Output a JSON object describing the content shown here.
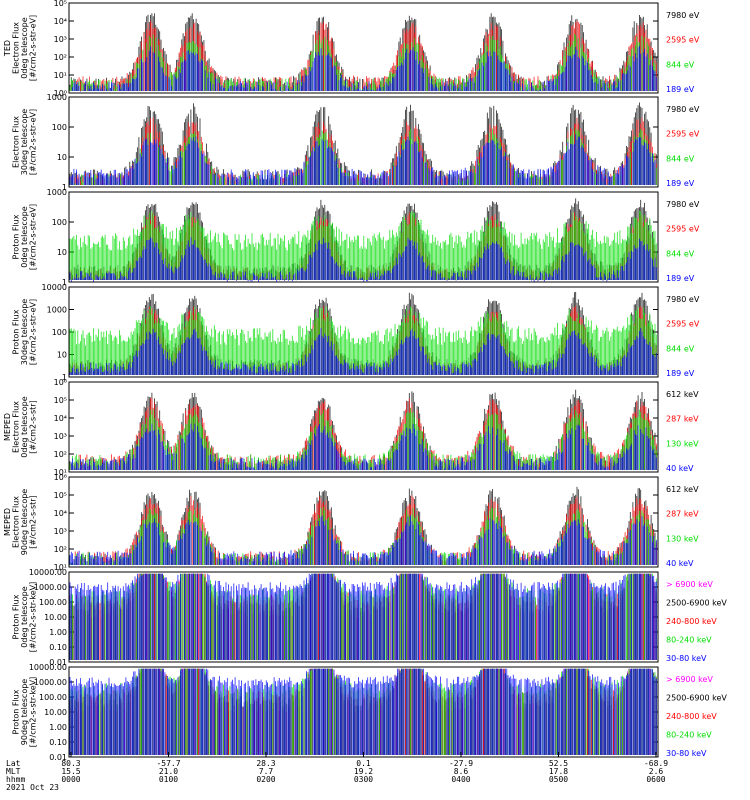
{
  "colors": {
    "blue": "#0000ff",
    "red": "#ff0000",
    "green": "#00dd00",
    "black": "#000000",
    "magenta": "#ff00ff"
  },
  "chart_data": [
    {
      "type": "line",
      "ylabel_lines": [
        "TED",
        "Electron Flux",
        "0deg telescope",
        "[#/cm2-s-str-eV]"
      ],
      "yscale": "log",
      "yticks": [
        "10⁰",
        "10¹",
        "10²",
        "10³",
        "10⁴",
        "10⁵"
      ],
      "ylim": [
        1,
        100000
      ],
      "series": [
        {
          "name": "7980 eV",
          "color": "#000000"
        },
        {
          "name": "2595 eV",
          "color": "#ff0000"
        },
        {
          "name": "844 eV",
          "color": "#00dd00"
        },
        {
          "name": "189 eV",
          "color": "#0000ff"
        }
      ]
    },
    {
      "type": "line",
      "ylabel_lines": [
        "Electron Flux",
        "30deg telescope",
        "[#/cm2-s-str-eV]"
      ],
      "yscale": "log",
      "yticks": [
        "1",
        "10",
        "100",
        "1000"
      ],
      "ylim": [
        1,
        3000
      ],
      "series": [
        {
          "name": "7980 eV",
          "color": "#000000"
        },
        {
          "name": "2595 eV",
          "color": "#ff0000"
        },
        {
          "name": "844 eV",
          "color": "#00dd00"
        },
        {
          "name": "189 eV",
          "color": "#0000ff"
        }
      ]
    },
    {
      "type": "line",
      "ylabel_lines": [
        "Proton Flux",
        "0deg telescope",
        "[#/cm2-s-str-eV]"
      ],
      "yscale": "log",
      "yticks": [
        "1",
        "10",
        "100",
        "1000"
      ],
      "ylim": [
        1,
        3000
      ],
      "series": [
        {
          "name": "7980 eV",
          "color": "#000000"
        },
        {
          "name": "2595 eV",
          "color": "#ff0000"
        },
        {
          "name": "844 eV",
          "color": "#00dd00"
        },
        {
          "name": "189 eV",
          "color": "#0000ff"
        }
      ]
    },
    {
      "type": "line",
      "ylabel_lines": [
        "Proton Flux",
        "30deg telescope",
        "[#/cm2-s-str-eV]"
      ],
      "yscale": "log",
      "yticks": [
        "1",
        "10",
        "100",
        "1000",
        "10000"
      ],
      "ylim": [
        1,
        10000
      ],
      "series": [
        {
          "name": "7980 eV",
          "color": "#000000"
        },
        {
          "name": "2595 eV",
          "color": "#ff0000"
        },
        {
          "name": "844 eV",
          "color": "#00dd00"
        },
        {
          "name": "189 eV",
          "color": "#0000ff"
        }
      ]
    },
    {
      "type": "line",
      "ylabel_lines": [
        "MEPED",
        "Electron Flux",
        "0deg telescope",
        "[#/cm2-s-str]"
      ],
      "yscale": "log",
      "yticks": [
        "10¹",
        "10²",
        "10³",
        "10⁴",
        "10⁵",
        "10⁶"
      ],
      "ylim": [
        10,
        1000000
      ],
      "series": [
        {
          "name": "612 keV",
          "color": "#000000"
        },
        {
          "name": "287 keV",
          "color": "#ff0000"
        },
        {
          "name": "130 keV",
          "color": "#00dd00"
        },
        {
          "name": "40 keV",
          "color": "#0000ff"
        }
      ]
    },
    {
      "type": "line",
      "ylabel_lines": [
        "MEPED",
        "Electron Flux",
        "90deg telescope",
        "[#/cm2-s-str]"
      ],
      "yscale": "log",
      "yticks": [
        "10¹",
        "10²",
        "10³",
        "10⁴",
        "10⁵",
        "10⁶"
      ],
      "ylim": [
        10,
        1000000
      ],
      "series": [
        {
          "name": "612 keV",
          "color": "#000000"
        },
        {
          "name": "287 keV",
          "color": "#ff0000"
        },
        {
          "name": "130 keV",
          "color": "#00dd00"
        },
        {
          "name": "40 keV",
          "color": "#0000ff"
        }
      ]
    },
    {
      "type": "line",
      "ylabel_lines": [
        "Proton Flux",
        "0deg telescope",
        "[#/cm2-s-str-keV]"
      ],
      "yscale": "log",
      "yticks": [
        "0.01",
        "0.10",
        "1.00",
        "10.00",
        "100.00",
        "1000.00",
        "10000.00"
      ],
      "ylim": [
        0.01,
        10000
      ],
      "series": [
        {
          "name": "> 6900 keV",
          "color": "#ff00ff"
        },
        {
          "name": "2500-6900 keV",
          "color": "#000000"
        },
        {
          "name": "240-800 keV",
          "color": "#ff0000"
        },
        {
          "name": "80-240 keV",
          "color": "#00dd00"
        },
        {
          "name": "30-80 keV",
          "color": "#0000ff"
        }
      ]
    },
    {
      "type": "line",
      "ylabel_lines": [
        "Proton Flux",
        "90deg telescope",
        "[#/cm2-s-str-keV]"
      ],
      "yscale": "log",
      "yticks": [
        "0.01",
        "0.10",
        "1.00",
        "10.00",
        "100.00",
        "1000.00",
        "10000.00"
      ],
      "ylim": [
        0.01,
        10000
      ],
      "series": [
        {
          "name": "> 6900 keV",
          "color": "#ff00ff"
        },
        {
          "name": "2500-6900 keV",
          "color": "#000000"
        },
        {
          "name": "240-800 keV",
          "color": "#ff0000"
        },
        {
          "name": "80-240 keV",
          "color": "#00dd00"
        },
        {
          "name": "30-80 keV",
          "color": "#0000ff"
        }
      ]
    }
  ],
  "xaxis": {
    "row_labels": [
      "Lat",
      "MLT",
      "hhmm"
    ],
    "lat": [
      "80.3",
      "-57.7",
      "28.3",
      "0.1",
      "-27.9",
      "52.5",
      "-68.9"
    ],
    "mlt": [
      "15.5",
      "21.0",
      "7.7",
      "19.2",
      "8.6",
      "17.8",
      "2.6"
    ],
    "hhmm": [
      "0000",
      "0100",
      "0200",
      "0300",
      "0400",
      "0500",
      "0600"
    ],
    "date": "2021 Oct 23"
  }
}
